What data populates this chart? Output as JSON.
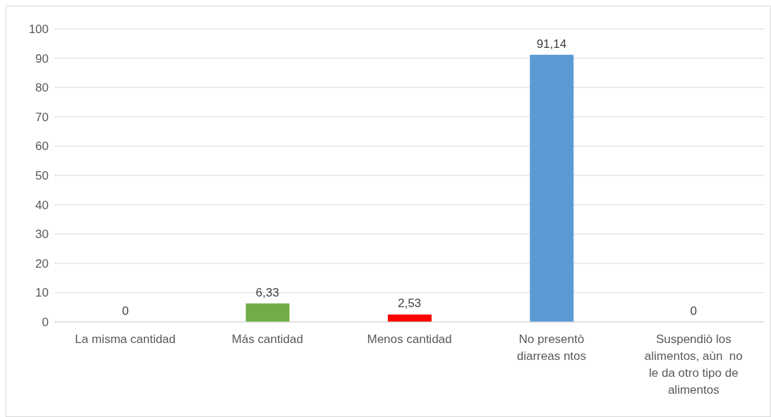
{
  "chart_data": {
    "type": "bar",
    "categories": [
      "La misma cantidad",
      "Más cantidad",
      "Menos cantidad",
      "No presentò diarreas ntos",
      "Suspendiò los alimentos, aùn  no le da otro tipo de alimentos"
    ],
    "values": [
      0,
      6.33,
      2.53,
      91.14,
      0
    ],
    "colors": [
      "#5b9bd5",
      "#70ad47",
      "#ff0000",
      "#5b9bd5",
      "#5b9bd5"
    ],
    "value_labels": [
      "0",
      "6,33",
      "2,53",
      "91,14",
      "0"
    ],
    "ylim": [
      0,
      100
    ],
    "yticks": [
      0,
      10,
      20,
      30,
      40,
      50,
      60,
      70,
      80,
      90,
      100
    ],
    "grid": "y"
  }
}
